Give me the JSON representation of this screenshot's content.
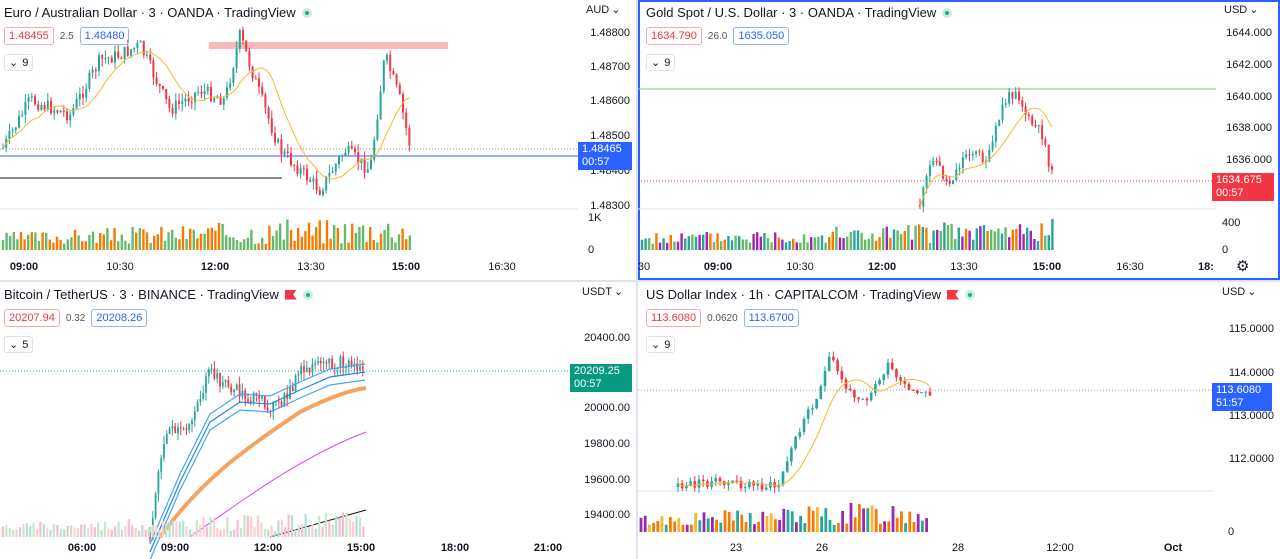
{
  "panes": [
    {
      "id": "euraud",
      "title": "Euro / Australian Dollar · 3 · OANDA · TradingView",
      "bid": "1.48455",
      "spread": "2.5",
      "ask": "1.48480",
      "indicator_count": "9",
      "currency": "AUD",
      "price_ticks": [
        "1.48800",
        "1.48700",
        "1.48600",
        "1.48500",
        "1.48400",
        "1.48300"
      ],
      "volume_ticks": [
        "1K",
        "0"
      ],
      "last_price": "1.48465",
      "countdown": "00:57",
      "time_ticks": [
        "09:00",
        "10:30",
        "12:00",
        "13:30",
        "15:00",
        "16:30"
      ],
      "price_tag_color": "#2962ff"
    },
    {
      "id": "xauusd",
      "title": "Gold Spot / U.S. Dollar · 3 · OANDA · TradingView",
      "bid": "1634.790",
      "spread": "26.0",
      "ask": "1635.050",
      "indicator_count": "9",
      "currency": "USD",
      "price_ticks": [
        "1644.000",
        "1642.000",
        "1640.000",
        "1638.000",
        "1636.000"
      ],
      "volume_ticks": [
        "400",
        "0"
      ],
      "last_price": "1634.675",
      "countdown": "00:57",
      "time_ticks": [
        "30",
        "09:00",
        "10:30",
        "12:00",
        "13:30",
        "15:00",
        "16:30",
        "18:"
      ],
      "price_tag_color": "#f23645",
      "active": true
    },
    {
      "id": "btcusdt",
      "title": "Bitcoin / TetherUS · 3 · BINANCE · TradingView",
      "bid": "20207.94",
      "spread": "0.32",
      "ask": "20208.26",
      "indicator_count": "5",
      "currency": "USDT",
      "price_ticks": [
        "20400.00",
        "20000.00",
        "19800.00",
        "19600.00",
        "19400.00"
      ],
      "volume_ticks": [],
      "last_price": "20209.25",
      "countdown": "00:57",
      "time_ticks": [
        "06:00",
        "09:00",
        "12:00",
        "15:00",
        "18:00",
        "21:00"
      ],
      "price_tag_color": "#089981"
    },
    {
      "id": "dxy",
      "title": "US Dollar Index · 1h · CAPITALCOM · TradingView",
      "bid": "113.6080",
      "spread": "0.0620",
      "ask": "113.6700",
      "indicator_count": "9",
      "currency": "USD",
      "price_ticks": [
        "115.0000",
        "114.0000",
        "113.0000",
        "112.0000"
      ],
      "volume_ticks": [
        "0"
      ],
      "last_price": "113.6080",
      "countdown": "51:57",
      "time_ticks": [
        "23",
        "26",
        "28",
        "12:00",
        "Oct"
      ],
      "price_tag_color": "#2962ff"
    }
  ],
  "colors": {
    "up": "#26a69a",
    "down": "#f23645",
    "ma": "#f7b731",
    "volume_up": "#66bb6a",
    "volume_down": "#f57c00",
    "volume_alt": "#9c27b0"
  }
}
